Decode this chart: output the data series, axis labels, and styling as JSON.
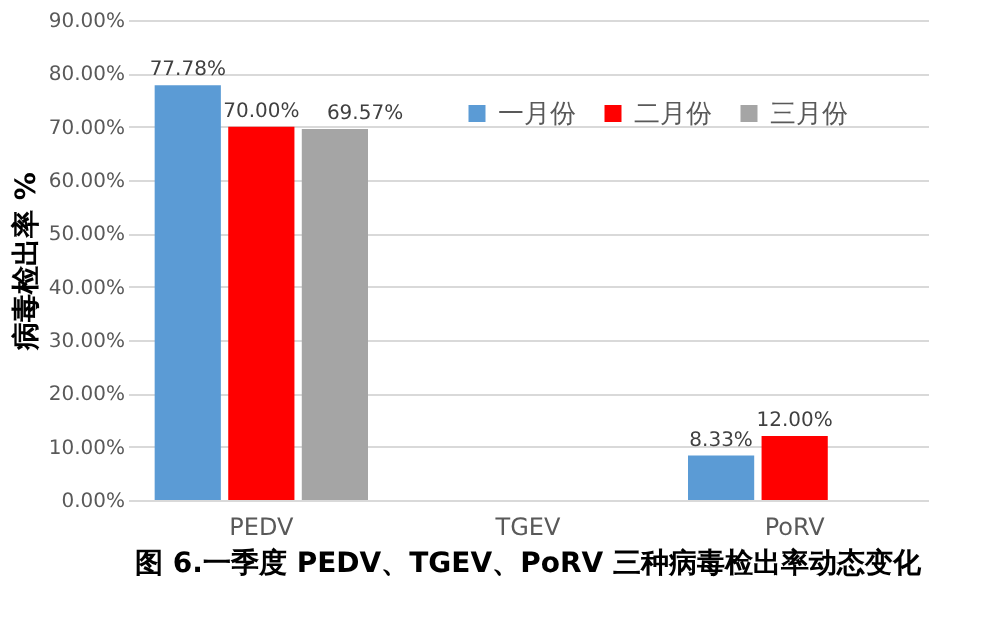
{
  "chart_data": {
    "type": "bar",
    "title": "图 6.一季度 PEDV、TGEV、PoRV 三种病毒检出率动态变化",
    "ylabel": "病毒检出率 %",
    "categories": [
      "PEDV",
      "TGEV",
      "PoRV"
    ],
    "series": [
      {
        "name": "一月份",
        "color": "#5b9bd5",
        "values": [
          77.78,
          null,
          8.33
        ],
        "value_labels": [
          "77.78%",
          null,
          "8.33%"
        ]
      },
      {
        "name": "二月份",
        "color": "#ff0000",
        "values": [
          70.0,
          null,
          12.0
        ],
        "value_labels": [
          "70.00%",
          null,
          "12.00%"
        ]
      },
      {
        "name": "三月份",
        "color": "#a5a5a5",
        "values": [
          69.57,
          null,
          null
        ],
        "value_labels": [
          "69.57%",
          null,
          null
        ]
      }
    ],
    "ylim": [
      0,
      90
    ],
    "yticks": [
      {
        "value": 0,
        "label": "0.00%"
      },
      {
        "value": 10,
        "label": "10.00%"
      },
      {
        "value": 20,
        "label": "20.00%"
      },
      {
        "value": 30,
        "label": "30.00%"
      },
      {
        "value": 40,
        "label": "40.00%"
      },
      {
        "value": 50,
        "label": "50.00%"
      },
      {
        "value": 60,
        "label": "60.00%"
      },
      {
        "value": 70,
        "label": "70.00%"
      },
      {
        "value": 80,
        "label": "80.00%"
      },
      {
        "value": 90,
        "label": "90.00%"
      }
    ],
    "grid": "y",
    "legend": "top right"
  }
}
